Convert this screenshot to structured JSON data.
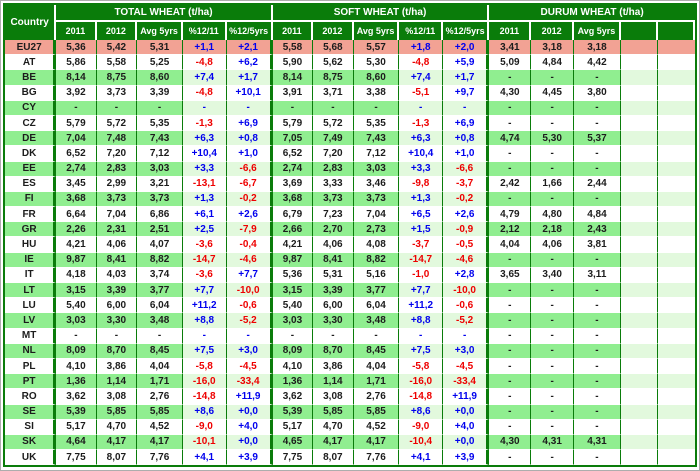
{
  "table": {
    "country_header": "Country",
    "groups": [
      {
        "id": "total",
        "label": "TOTAL WHEAT (t/ha)",
        "columns": [
          "2011",
          "2012",
          "Avg 5yrs",
          "%12/11",
          "%12/5yrs"
        ],
        "clipped": false
      },
      {
        "id": "soft",
        "label": "SOFT WHEAT (t/ha)",
        "columns": [
          "2011",
          "2012",
          "Avg 5yrs",
          "%12/11",
          "%12/5yrs"
        ],
        "clipped": false
      },
      {
        "id": "durum",
        "label": "DURUM WHEAT (t/ha)",
        "columns": [
          "2011",
          "2012",
          "Avg 5yrs"
        ],
        "clipped": true
      }
    ],
    "rows": [
      {
        "country": "EU27",
        "tone": "eu",
        "total": [
          "5,36",
          "5,42",
          "5,31",
          "+1,1",
          "+2,1"
        ],
        "soft": [
          "5,58",
          "5,68",
          "5,57",
          "+1,8",
          "+2,0"
        ],
        "durum": [
          "3,41",
          "3,18",
          "3,18"
        ]
      },
      {
        "country": "AT",
        "tone": "white",
        "total": [
          "5,86",
          "5,58",
          "5,25",
          "-4,8",
          "+6,2"
        ],
        "soft": [
          "5,90",
          "5,62",
          "5,30",
          "-4,8",
          "+5,9"
        ],
        "durum": [
          "5,09",
          "4,84",
          "4,42"
        ]
      },
      {
        "country": "BE",
        "tone": "green",
        "total": [
          "8,14",
          "8,75",
          "8,60",
          "+7,4",
          "+1,7"
        ],
        "soft": [
          "8,14",
          "8,75",
          "8,60",
          "+7,4",
          "+1,7"
        ],
        "durum": [
          "-",
          "-",
          "-"
        ]
      },
      {
        "country": "BG",
        "tone": "white",
        "total": [
          "3,92",
          "3,73",
          "3,39",
          "-4,8",
          "+10,1"
        ],
        "soft": [
          "3,91",
          "3,71",
          "3,38",
          "-5,1",
          "+9,7"
        ],
        "durum": [
          "4,30",
          "4,45",
          "3,80"
        ]
      },
      {
        "country": "CY",
        "tone": "green",
        "total": [
          "-",
          "-",
          "-",
          "-",
          "-"
        ],
        "soft": [
          "-",
          "-",
          "-",
          "-",
          "-"
        ],
        "durum": [
          "-",
          "-",
          "-"
        ]
      },
      {
        "country": "CZ",
        "tone": "white",
        "total": [
          "5,79",
          "5,72",
          "5,35",
          "-1,3",
          "+6,9"
        ],
        "soft": [
          "5,79",
          "5,72",
          "5,35",
          "-1,3",
          "+6,9"
        ],
        "durum": [
          "-",
          "-",
          "-"
        ]
      },
      {
        "country": "DE",
        "tone": "green",
        "total": [
          "7,04",
          "7,48",
          "7,43",
          "+6,3",
          "+0,8"
        ],
        "soft": [
          "7,05",
          "7,49",
          "7,43",
          "+6,3",
          "+0,8"
        ],
        "durum": [
          "4,74",
          "5,30",
          "5,37"
        ]
      },
      {
        "country": "DK",
        "tone": "white",
        "total": [
          "6,52",
          "7,20",
          "7,12",
          "+10,4",
          "+1,0"
        ],
        "soft": [
          "6,52",
          "7,20",
          "7,12",
          "+10,4",
          "+1,0"
        ],
        "durum": [
          "-",
          "-",
          "-"
        ]
      },
      {
        "country": "EE",
        "tone": "green",
        "total": [
          "2,74",
          "2,83",
          "3,03",
          "+3,3",
          "-6,6"
        ],
        "soft": [
          "2,74",
          "2,83",
          "3,03",
          "+3,3",
          "-6,6"
        ],
        "durum": [
          "-",
          "-",
          "-"
        ]
      },
      {
        "country": "ES",
        "tone": "white",
        "total": [
          "3,45",
          "2,99",
          "3,21",
          "-13,1",
          "-6,7"
        ],
        "soft": [
          "3,69",
          "3,33",
          "3,46",
          "-9,8",
          "-3,7"
        ],
        "durum": [
          "2,42",
          "1,66",
          "2,44"
        ]
      },
      {
        "country": "FI",
        "tone": "green",
        "total": [
          "3,68",
          "3,73",
          "3,73",
          "+1,3",
          "-0,2"
        ],
        "soft": [
          "3,68",
          "3,73",
          "3,73",
          "+1,3",
          "-0,2"
        ],
        "durum": [
          "-",
          "-",
          "-"
        ]
      },
      {
        "country": "FR",
        "tone": "white",
        "total": [
          "6,64",
          "7,04",
          "6,86",
          "+6,1",
          "+2,6"
        ],
        "soft": [
          "6,79",
          "7,23",
          "7,04",
          "+6,5",
          "+2,6"
        ],
        "durum": [
          "4,79",
          "4,80",
          "4,84"
        ]
      },
      {
        "country": "GR",
        "tone": "green",
        "total": [
          "2,26",
          "2,31",
          "2,51",
          "+2,5",
          "-7,9"
        ],
        "soft": [
          "2,66",
          "2,70",
          "2,73",
          "+1,5",
          "-0,9"
        ],
        "durum": [
          "2,12",
          "2,18",
          "2,43"
        ]
      },
      {
        "country": "HU",
        "tone": "white",
        "total": [
          "4,21",
          "4,06",
          "4,07",
          "-3,6",
          "-0,4"
        ],
        "soft": [
          "4,21",
          "4,06",
          "4,08",
          "-3,7",
          "-0,5"
        ],
        "durum": [
          "4,04",
          "4,06",
          "3,81"
        ]
      },
      {
        "country": "IE",
        "tone": "green",
        "total": [
          "9,87",
          "8,41",
          "8,82",
          "-14,7",
          "-4,6"
        ],
        "soft": [
          "9,87",
          "8,41",
          "8,82",
          "-14,7",
          "-4,6"
        ],
        "durum": [
          "-",
          "-",
          "-"
        ]
      },
      {
        "country": "IT",
        "tone": "white",
        "total": [
          "4,18",
          "4,03",
          "3,74",
          "-3,6",
          "+7,7"
        ],
        "soft": [
          "5,36",
          "5,31",
          "5,16",
          "-1,0",
          "+2,8"
        ],
        "durum": [
          "3,65",
          "3,40",
          "3,11"
        ]
      },
      {
        "country": "LT",
        "tone": "green",
        "total": [
          "3,15",
          "3,39",
          "3,77",
          "+7,7",
          "-10,0"
        ],
        "soft": [
          "3,15",
          "3,39",
          "3,77",
          "+7,7",
          "-10,0"
        ],
        "durum": [
          "-",
          "-",
          "-"
        ]
      },
      {
        "country": "LU",
        "tone": "white",
        "total": [
          "5,40",
          "6,00",
          "6,04",
          "+11,2",
          "-0,6"
        ],
        "soft": [
          "5,40",
          "6,00",
          "6,04",
          "+11,2",
          "-0,6"
        ],
        "durum": [
          "-",
          "-",
          "-"
        ]
      },
      {
        "country": "LV",
        "tone": "green",
        "total": [
          "3,03",
          "3,30",
          "3,48",
          "+8,8",
          "-5,2"
        ],
        "soft": [
          "3,03",
          "3,30",
          "3,48",
          "+8,8",
          "-5,2"
        ],
        "durum": [
          "-",
          "-",
          "-"
        ]
      },
      {
        "country": "MT",
        "tone": "white",
        "total": [
          "-",
          "-",
          "-",
          "-",
          "-"
        ],
        "soft": [
          "-",
          "-",
          "-",
          "-",
          "-"
        ],
        "durum": [
          "-",
          "-",
          "-"
        ]
      },
      {
        "country": "NL",
        "tone": "green",
        "total": [
          "8,09",
          "8,70",
          "8,45",
          "+7,5",
          "+3,0"
        ],
        "soft": [
          "8,09",
          "8,70",
          "8,45",
          "+7,5",
          "+3,0"
        ],
        "durum": [
          "-",
          "-",
          "-"
        ]
      },
      {
        "country": "PL",
        "tone": "white",
        "total": [
          "4,10",
          "3,86",
          "4,04",
          "-5,8",
          "-4,5"
        ],
        "soft": [
          "4,10",
          "3,86",
          "4,04",
          "-5,8",
          "-4,5"
        ],
        "durum": [
          "-",
          "-",
          "-"
        ]
      },
      {
        "country": "PT",
        "tone": "green",
        "total": [
          "1,36",
          "1,14",
          "1,71",
          "-16,0",
          "-33,4"
        ],
        "soft": [
          "1,36",
          "1,14",
          "1,71",
          "-16,0",
          "-33,4"
        ],
        "durum": [
          "-",
          "-",
          "-"
        ]
      },
      {
        "country": "RO",
        "tone": "white",
        "total": [
          "3,62",
          "3,08",
          "2,76",
          "-14,8",
          "+11,9"
        ],
        "soft": [
          "3,62",
          "3,08",
          "2,76",
          "-14,8",
          "+11,9"
        ],
        "durum": [
          "-",
          "-",
          "-"
        ]
      },
      {
        "country": "SE",
        "tone": "green",
        "total": [
          "5,39",
          "5,85",
          "5,85",
          "+8,6",
          "+0,0"
        ],
        "soft": [
          "5,39",
          "5,85",
          "5,85",
          "+8,6",
          "+0,0"
        ],
        "durum": [
          "-",
          "-",
          "-"
        ]
      },
      {
        "country": "SI",
        "tone": "white",
        "total": [
          "5,17",
          "4,70",
          "4,52",
          "-9,0",
          "+4,0"
        ],
        "soft": [
          "5,17",
          "4,70",
          "4,52",
          "-9,0",
          "+4,0"
        ],
        "durum": [
          "-",
          "-",
          "-"
        ]
      },
      {
        "country": "SK",
        "tone": "green",
        "total": [
          "4,64",
          "4,17",
          "4,17",
          "-10,1",
          "+0,0"
        ],
        "soft": [
          "4,65",
          "4,17",
          "4,17",
          "-10,4",
          "+0,0"
        ],
        "durum": [
          "4,30",
          "4,31",
          "4,31"
        ]
      },
      {
        "country": "UK",
        "tone": "white",
        "total": [
          "7,75",
          "8,07",
          "7,76",
          "+4,1",
          "+3,9"
        ],
        "soft": [
          "7,75",
          "8,07",
          "7,76",
          "+4,1",
          "+3,9"
        ],
        "durum": [
          "-",
          "-",
          "-"
        ]
      }
    ],
    "colors": {
      "header_green": "#0A7C0A",
      "border_green": "#0A7C0A",
      "row_green": "#90EE90",
      "row_green_light": "#E2F9DD",
      "row_eu": "#F2A294",
      "positive": "#0000EE",
      "negative": "#EE0000",
      "text_dark": "#1C1C1C"
    }
  },
  "chart_data": {
    "type": "table",
    "note_source": "values duplicated from table.rows",
    "units": "t/ha",
    "sections": [
      "TOTAL WHEAT (t/ha)",
      "SOFT WHEAT (t/ha)",
      "DURUM WHEAT (t/ha)"
    ],
    "section_columns": [
      "2011",
      "2012",
      "Avg 5yrs",
      "%12/11",
      "%12/5yrs"
    ]
  }
}
